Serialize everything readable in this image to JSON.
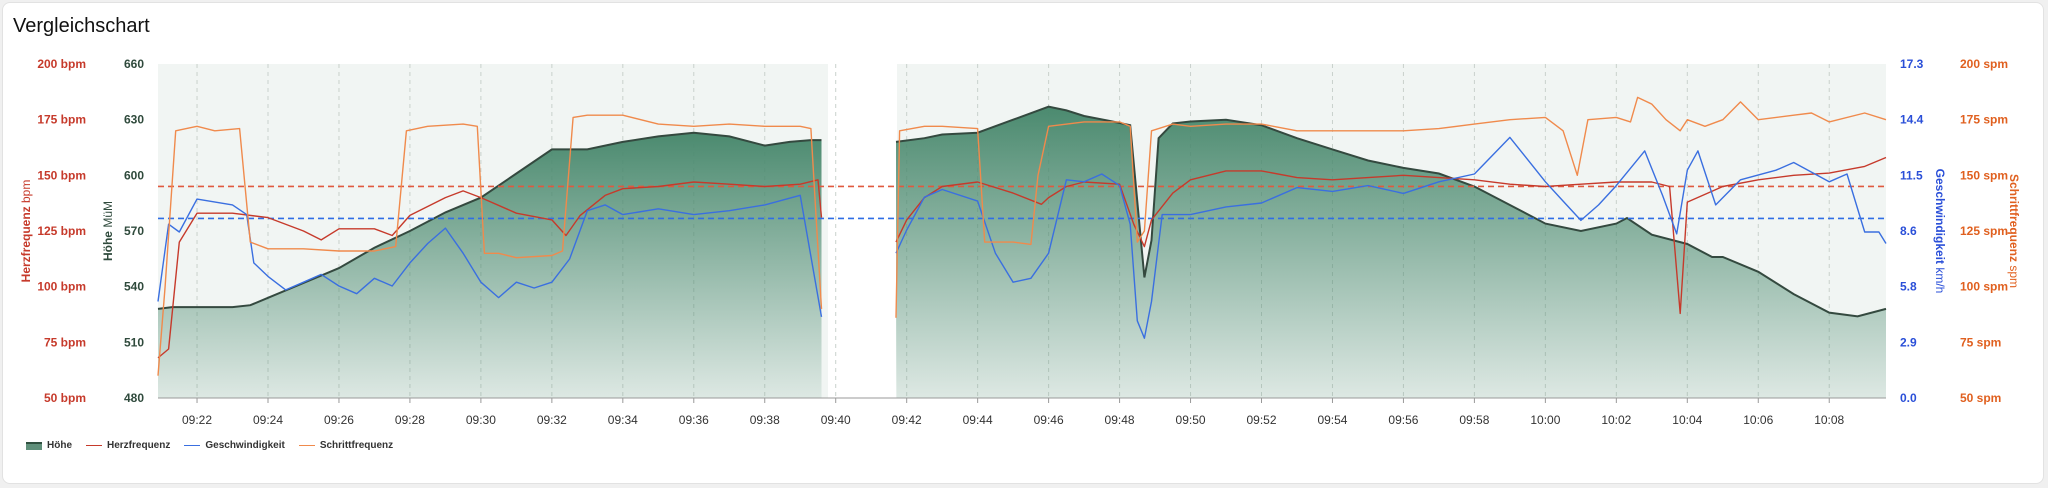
{
  "title": "Vergleichschart",
  "colors": {
    "hoehe_line": "#34493f",
    "hoehe_fill": "#4b8a6f",
    "herzfrequenz": "#c63a2b",
    "geschwindigkeit": "#3a6fe0",
    "schrittfrequenz": "#f08a4c",
    "axis_hr": "#c63a2b",
    "axis_hoehe": "#2f4a3c",
    "axis_speed": "#2a4fd8",
    "axis_cadence": "#e0601f"
  },
  "axes": {
    "left_outer": {
      "title": "Herzfrequenz",
      "unit": "bpm",
      "ticks": [
        "200 bpm",
        "175 bpm",
        "150 bpm",
        "125 bpm",
        "100 bpm",
        "75 bpm",
        "50 bpm"
      ]
    },
    "left_inner": {
      "title": "Höhe",
      "unit": "MüM",
      "ticks": [
        "660",
        "630",
        "600",
        "570",
        "540",
        "510",
        "480"
      ]
    },
    "right_inner": {
      "title": "Geschwindigkeit",
      "unit": "km/h",
      "ticks": [
        "17.3",
        "14.4",
        "11.5",
        "8.6",
        "5.8",
        "2.9",
        "0.0"
      ]
    },
    "right_outer": {
      "title": "Schrittfrequenz",
      "unit": "spm",
      "ticks": [
        "200 spm",
        "175 spm",
        "150 spm",
        "125 spm",
        "100 spm",
        "75 spm",
        "50 spm"
      ]
    }
  },
  "x_ticks": [
    "09:22",
    "09:24",
    "09:26",
    "09:28",
    "09:30",
    "09:32",
    "09:34",
    "09:36",
    "09:38",
    "09:40",
    "09:42",
    "09:44",
    "09:46",
    "09:48",
    "09:50",
    "09:52",
    "09:54",
    "09:56",
    "09:58",
    "10:00",
    "10:02",
    "10:04",
    "10:06",
    "10:08"
  ],
  "legend": [
    {
      "label": "Höhe",
      "kind": "area",
      "color": "#4b8a6f"
    },
    {
      "label": "Herzfrequenz",
      "kind": "line",
      "color": "#c63a2b"
    },
    {
      "label": "Geschwindigkeit",
      "kind": "line",
      "color": "#3a6fe0"
    },
    {
      "label": "Schrittfrequenz",
      "kind": "line",
      "color": "#f08a4c"
    }
  ],
  "chart_data": {
    "type": "line",
    "x_unit": "minutes after 09:00",
    "x_range": [
      20.9,
      69.6
    ],
    "gap": [
      39.6,
      41.7
    ],
    "reference_lines": [
      {
        "series": "Herzfrequenz",
        "value": 145
      },
      {
        "series": "Geschwindigkeit",
        "value": 9.3
      }
    ],
    "series": [
      {
        "name": "Höhe",
        "axis": "left_inner",
        "style": "area",
        "ylim": [
          480,
          660
        ],
        "points": [
          [
            20.9,
            528
          ],
          [
            21.3,
            529
          ],
          [
            22,
            529
          ],
          [
            23,
            529
          ],
          [
            23.5,
            530
          ],
          [
            24,
            534
          ],
          [
            25,
            542
          ],
          [
            26,
            550
          ],
          [
            27,
            561
          ],
          [
            28,
            570
          ],
          [
            29,
            580
          ],
          [
            30,
            588
          ],
          [
            31,
            601
          ],
          [
            32,
            614
          ],
          [
            33,
            614
          ],
          [
            34,
            618
          ],
          [
            35,
            621
          ],
          [
            36,
            623
          ],
          [
            37,
            621
          ],
          [
            38,
            616
          ],
          [
            38.7,
            618
          ],
          [
            39.3,
            619
          ],
          [
            39.6,
            619
          ],
          [
            41.7,
            618
          ],
          [
            42.5,
            620
          ],
          [
            43,
            622
          ],
          [
            44,
            623
          ],
          [
            45,
            630
          ],
          [
            46,
            637
          ],
          [
            46.5,
            635
          ],
          [
            47,
            632
          ],
          [
            47.8,
            629
          ],
          [
            48.3,
            627
          ],
          [
            48.6,
            565
          ],
          [
            48.7,
            545
          ],
          [
            48.9,
            565
          ],
          [
            49.1,
            620
          ],
          [
            49.5,
            628
          ],
          [
            50,
            629
          ],
          [
            51,
            630
          ],
          [
            52,
            627
          ],
          [
            53,
            620
          ],
          [
            54,
            614
          ],
          [
            55,
            608
          ],
          [
            56,
            604
          ],
          [
            57,
            601
          ],
          [
            58,
            594
          ],
          [
            59,
            584
          ],
          [
            60,
            574
          ],
          [
            61,
            570
          ],
          [
            62,
            574
          ],
          [
            62.3,
            577
          ],
          [
            63,
            568
          ],
          [
            64,
            563
          ],
          [
            64.7,
            556
          ],
          [
            65,
            556
          ],
          [
            66,
            548
          ],
          [
            67,
            536
          ],
          [
            68,
            526
          ],
          [
            68.8,
            524
          ],
          [
            69.6,
            528
          ]
        ]
      },
      {
        "name": "Herzfrequenz",
        "axis": "left_outer",
        "ylim": [
          50,
          200
        ],
        "points": [
          [
            20.9,
            68
          ],
          [
            21.2,
            72
          ],
          [
            21.5,
            120
          ],
          [
            22,
            133
          ],
          [
            23,
            133
          ],
          [
            24,
            131
          ],
          [
            25,
            125
          ],
          [
            25.5,
            121
          ],
          [
            26,
            126
          ],
          [
            27,
            126
          ],
          [
            27.5,
            123
          ],
          [
            28,
            132
          ],
          [
            29,
            140
          ],
          [
            29.5,
            143
          ],
          [
            30,
            140
          ],
          [
            31,
            133
          ],
          [
            32,
            130
          ],
          [
            32.4,
            123
          ],
          [
            32.8,
            132
          ],
          [
            33.5,
            141
          ],
          [
            34,
            144
          ],
          [
            35,
            145
          ],
          [
            36,
            147
          ],
          [
            37,
            146
          ],
          [
            38,
            145
          ],
          [
            39,
            146
          ],
          [
            39.5,
            148
          ],
          [
            39.6,
            131
          ],
          [
            41.7,
            120
          ],
          [
            42,
            130
          ],
          [
            42.5,
            140
          ],
          [
            43,
            145
          ],
          [
            44,
            147
          ],
          [
            45,
            142
          ],
          [
            45.8,
            137
          ],
          [
            46,
            140
          ],
          [
            46.5,
            145
          ],
          [
            47,
            147
          ],
          [
            48,
            146
          ],
          [
            48.4,
            128
          ],
          [
            48.7,
            118
          ],
          [
            48.9,
            130
          ],
          [
            49.5,
            142
          ],
          [
            50,
            148
          ],
          [
            51,
            152
          ],
          [
            52,
            152
          ],
          [
            53,
            149
          ],
          [
            54,
            148
          ],
          [
            55,
            149
          ],
          [
            56,
            150
          ],
          [
            57,
            149
          ],
          [
            58,
            148
          ],
          [
            59,
            146
          ],
          [
            60,
            145
          ],
          [
            61,
            146
          ],
          [
            62,
            147
          ],
          [
            63,
            147
          ],
          [
            63.5,
            145
          ],
          [
            63.8,
            88
          ],
          [
            64,
            138
          ],
          [
            65,
            145
          ],
          [
            66,
            148
          ],
          [
            67,
            150
          ],
          [
            68,
            151
          ],
          [
            69,
            154
          ],
          [
            69.6,
            158
          ]
        ]
      },
      {
        "name": "Geschwindigkeit",
        "axis": "right_inner",
        "ylim": [
          0,
          17.3
        ],
        "points": [
          [
            20.9,
            5
          ],
          [
            21.2,
            9.0
          ],
          [
            21.5,
            8.6
          ],
          [
            22,
            10.3
          ],
          [
            23,
            10.0
          ],
          [
            23.4,
            9.5
          ],
          [
            23.6,
            7.0
          ],
          [
            24,
            6.3
          ],
          [
            24.5,
            5.6
          ],
          [
            25,
            6.0
          ],
          [
            25.5,
            6.4
          ],
          [
            26,
            5.8
          ],
          [
            26.5,
            5.4
          ],
          [
            27,
            6.2
          ],
          [
            27.5,
            5.8
          ],
          [
            28,
            7.0
          ],
          [
            28.5,
            8.0
          ],
          [
            29,
            8.8
          ],
          [
            29.5,
            7.5
          ],
          [
            30,
            6.0
          ],
          [
            30.5,
            5.2
          ],
          [
            31,
            6.0
          ],
          [
            31.5,
            5.7
          ],
          [
            32,
            6.0
          ],
          [
            32.5,
            7.2
          ],
          [
            33,
            9.7
          ],
          [
            33.5,
            10.0
          ],
          [
            34,
            9.5
          ],
          [
            35,
            9.8
          ],
          [
            36,
            9.5
          ],
          [
            37,
            9.7
          ],
          [
            38,
            10.0
          ],
          [
            39,
            10.5
          ],
          [
            39.6,
            4.2
          ],
          [
            41.7,
            7.5
          ],
          [
            42,
            8.7
          ],
          [
            42.5,
            10.4
          ],
          [
            43,
            10.8
          ],
          [
            44,
            10.2
          ],
          [
            44.5,
            7.5
          ],
          [
            45,
            6.0
          ],
          [
            45.5,
            6.2
          ],
          [
            46,
            7.5
          ],
          [
            46.5,
            11.3
          ],
          [
            47,
            11.2
          ],
          [
            47.5,
            11.6
          ],
          [
            48,
            11.0
          ],
          [
            48.3,
            9.0
          ],
          [
            48.5,
            4.0
          ],
          [
            48.7,
            3.1
          ],
          [
            48.9,
            5.0
          ],
          [
            49.2,
            9.5
          ],
          [
            50,
            9.5
          ],
          [
            51,
            9.9
          ],
          [
            52,
            10.1
          ],
          [
            53,
            10.9
          ],
          [
            54,
            10.7
          ],
          [
            55,
            11.0
          ],
          [
            56,
            10.6
          ],
          [
            57,
            11.2
          ],
          [
            58,
            11.6
          ],
          [
            59,
            13.5
          ],
          [
            60,
            11.2
          ],
          [
            60.5,
            10.2
          ],
          [
            61,
            9.2
          ],
          [
            61.5,
            10.0
          ],
          [
            62,
            11.0
          ],
          [
            62.8,
            12.8
          ],
          [
            63.3,
            10.5
          ],
          [
            63.7,
            8.5
          ],
          [
            64,
            11.8
          ],
          [
            64.3,
            12.8
          ],
          [
            64.8,
            10.0
          ],
          [
            65.5,
            11.3
          ],
          [
            66.5,
            11.8
          ],
          [
            67,
            12.2
          ],
          [
            68,
            11.2
          ],
          [
            68.5,
            11.6
          ],
          [
            69,
            8.6
          ],
          [
            69.4,
            8.6
          ],
          [
            69.6,
            8.0
          ]
        ]
      },
      {
        "name": "Schrittfrequenz",
        "axis": "right_outer",
        "ylim": [
          50,
          200
        ],
        "points": [
          [
            20.9,
            60
          ],
          [
            21.1,
            100
          ],
          [
            21.4,
            170
          ],
          [
            22,
            172
          ],
          [
            22.5,
            170
          ],
          [
            23.2,
            171
          ],
          [
            23.5,
            120
          ],
          [
            24,
            117
          ],
          [
            25,
            117
          ],
          [
            26,
            116
          ],
          [
            27,
            116
          ],
          [
            27.6,
            118
          ],
          [
            27.9,
            170
          ],
          [
            28.5,
            172
          ],
          [
            29.5,
            173
          ],
          [
            29.9,
            172
          ],
          [
            30.1,
            115
          ],
          [
            30.5,
            115
          ],
          [
            31,
            113
          ],
          [
            32,
            114
          ],
          [
            32.3,
            116
          ],
          [
            32.6,
            176
          ],
          [
            33,
            177
          ],
          [
            34,
            177
          ],
          [
            35,
            173
          ],
          [
            36,
            172
          ],
          [
            37,
            173
          ],
          [
            38,
            172
          ],
          [
            39,
            172
          ],
          [
            39.3,
            171
          ],
          [
            39.6,
            90
          ],
          [
            41.7,
            86
          ],
          [
            41.8,
            170
          ],
          [
            42.5,
            172
          ],
          [
            43,
            172
          ],
          [
            44,
            171
          ],
          [
            44.2,
            120
          ],
          [
            44.5,
            120
          ],
          [
            45,
            120
          ],
          [
            45.5,
            119
          ],
          [
            45.7,
            150
          ],
          [
            46,
            172
          ],
          [
            47,
            174
          ],
          [
            48,
            174
          ],
          [
            48.3,
            172
          ],
          [
            48.5,
            120
          ],
          [
            48.7,
            125
          ],
          [
            48.9,
            170
          ],
          [
            49.5,
            173
          ],
          [
            50,
            172
          ],
          [
            51,
            173
          ],
          [
            52,
            173
          ],
          [
            53,
            170
          ],
          [
            54,
            170
          ],
          [
            55,
            170
          ],
          [
            56,
            170
          ],
          [
            57,
            171
          ],
          [
            58,
            173
          ],
          [
            59,
            175
          ],
          [
            60,
            176
          ],
          [
            60.5,
            170
          ],
          [
            60.9,
            150
          ],
          [
            61.2,
            175
          ],
          [
            62,
            176
          ],
          [
            62.4,
            174
          ],
          [
            62.6,
            185
          ],
          [
            63,
            182
          ],
          [
            63.4,
            175
          ],
          [
            63.8,
            170
          ],
          [
            64,
            175
          ],
          [
            64.5,
            172
          ],
          [
            65,
            175
          ],
          [
            65.5,
            183
          ],
          [
            66,
            175
          ],
          [
            67,
            177
          ],
          [
            67.5,
            178
          ],
          [
            68,
            174
          ],
          [
            69,
            178
          ],
          [
            69.6,
            175
          ]
        ]
      }
    ]
  }
}
